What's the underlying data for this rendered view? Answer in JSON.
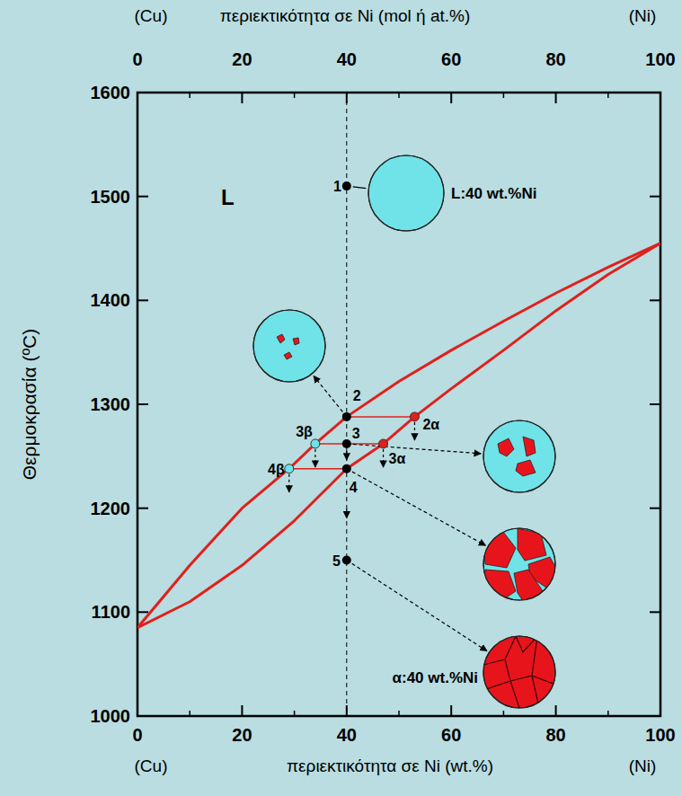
{
  "chart_data": {
    "type": "line",
    "xlabel": "περιεκτικότητα σε Ni (wt.%)",
    "x2label": "περιεκτικότητα σε Ni (mol ή at.%)",
    "x_end_labels": [
      "(Cu)",
      "(Ni)"
    ],
    "ylabel": "Θερμοκρασία (ºC)",
    "xlim": [
      0,
      100
    ],
    "xticks": [
      0,
      20,
      40,
      60,
      80,
      100
    ],
    "x2lim": [
      0,
      100
    ],
    "x2ticks": [
      0,
      20,
      40,
      60,
      80,
      100
    ],
    "ylim": [
      1000,
      1600
    ],
    "yticks": [
      1000,
      1100,
      1200,
      1300,
      1400,
      1500,
      1600
    ],
    "grid": false,
    "series": [
      {
        "color": "#e0201c",
        "x": [
          0,
          10,
          20,
          29,
          34,
          40,
          50,
          60,
          70,
          80,
          90,
          100
        ],
        "values": [
          1085,
          1145,
          1200,
          1238,
          1262,
          1288,
          1322,
          1352,
          1380,
          1407,
          1432,
          1455
        ]
      },
      {
        "color": "#e0201c",
        "x": [
          0,
          10,
          20,
          30,
          40,
          47,
          53,
          60,
          70,
          80,
          90,
          100
        ],
        "values": [
          1085,
          1110,
          1145,
          1188,
          1238,
          1262,
          1288,
          1315,
          1352,
          1390,
          1425,
          1455
        ]
      }
    ],
    "region_label": "L",
    "points": [
      {
        "label": "1",
        "x": 40,
        "y": 1510,
        "color": "#000000"
      },
      {
        "label": "2",
        "x": 40,
        "y": 1288,
        "color": "#000000"
      },
      {
        "label": "2α",
        "x": 53,
        "y": 1288,
        "color": "#e0201c"
      },
      {
        "label": "3",
        "x": 40,
        "y": 1262,
        "color": "#000000"
      },
      {
        "label": "3β",
        "x": 34,
        "y": 1262,
        "color": "#6fe3e8"
      },
      {
        "label": "3α",
        "x": 47,
        "y": 1262,
        "color": "#e0201c"
      },
      {
        "label": "4",
        "x": 40,
        "y": 1238,
        "color": "#000000"
      },
      {
        "label": "4β",
        "x": 29,
        "y": 1238,
        "color": "#6fe3e8"
      },
      {
        "label": "5",
        "x": 40,
        "y": 1150,
        "color": "#000000"
      }
    ],
    "annotations": [
      "L:40 wt.%Ni",
      "α:40 wt.%Ni"
    ]
  }
}
